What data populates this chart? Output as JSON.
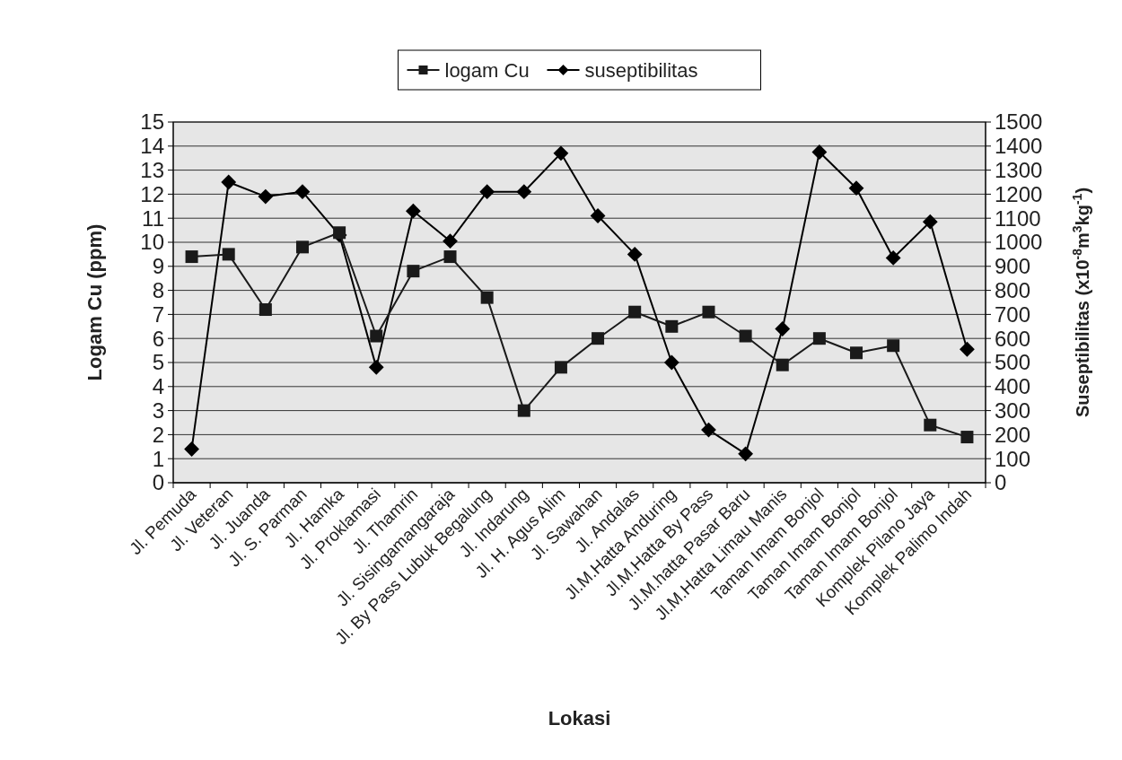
{
  "chart_data": {
    "type": "line",
    "xlabel": "Lokasi",
    "ylabel": "Logam Cu (ppm)",
    "y2label": "Suseptibilitas (x10$^{-8}$m$^{3}$kg$^{-1}$)",
    "categories": [
      "Jl. Pemuda",
      "Jl. Veteran",
      "Jl. Juanda",
      "Jl. S. Parman",
      "Jl. Hamka",
      "Jl. Proklamasi",
      "Jl. Thamrin",
      "Jl. Sisingamangaraja",
      "Jl. By Pass Lubuk Begalung",
      "Jl. Indarung",
      "Jl. H. Agus Alim",
      "Jl. Sawahan",
      "Jl. Andalas",
      "Jl.M.Hatta Anduring",
      "Jl.M.Hatta By Pass",
      "Jl.M.hatta Pasar Baru",
      "Jl.M.Hatta Limau Manis",
      "Taman Imam Bonjol",
      "Taman Imam Bonjol",
      "Taman Imam Bonjol",
      "Komplek Pilano Jaya",
      "Komplek Palimo Indah"
    ],
    "series": [
      {
        "name": "logam Cu",
        "color": "#1a1a1a",
        "marker": "square",
        "values": [
          9.4,
          9.5,
          7.2,
          9.8,
          10.4,
          6.1,
          8.8,
          9.4,
          7.7,
          3.0,
          4.8,
          6.0,
          7.1,
          6.5,
          7.1,
          6.1,
          4.9,
          6.0,
          5.4,
          5.7,
          2.4,
          1.9
        ]
      },
      {
        "name": "suseptibilitas",
        "color": "#000000",
        "marker": "diamond",
        "axis": "y2",
        "values": [
          140,
          1250,
          1190,
          1210,
          1030,
          480,
          1130,
          1005,
          1210,
          1210,
          1370,
          1110,
          950,
          500,
          220,
          120,
          640,
          1375,
          1225,
          935,
          1085,
          555
        ]
      }
    ],
    "ylim": [
      0,
      15
    ],
    "yticks": [
      0,
      1,
      2,
      3,
      4,
      5,
      6,
      7,
      8,
      9,
      10,
      11,
      12,
      13,
      14,
      15
    ],
    "y2lim": [
      0,
      1500
    ],
    "y2ticks": [
      0,
      100,
      200,
      300,
      400,
      500,
      600,
      700,
      800,
      900,
      1000,
      1100,
      1200,
      1300,
      1400,
      1500
    ],
    "grid": "y",
    "legend": "top",
    "line_style": "solid"
  }
}
